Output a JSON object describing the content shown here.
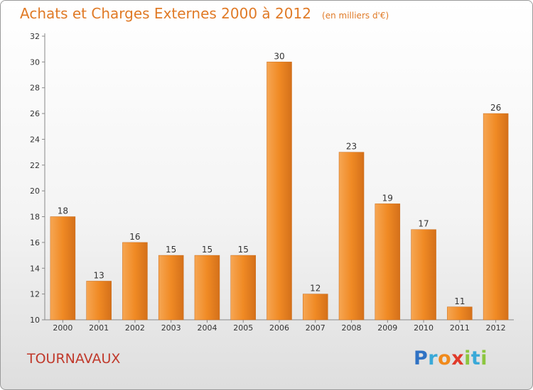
{
  "chart_data": {
    "type": "bar",
    "title": "Achats et Charges Externes 2000 à 2012",
    "subtitle": "(en milliers d'€)",
    "categories": [
      "2000",
      "2001",
      "2002",
      "2003",
      "2004",
      "2005",
      "2006",
      "2007",
      "2008",
      "2009",
      "2010",
      "2011",
      "2012"
    ],
    "values": [
      18,
      13,
      16,
      15,
      15,
      15,
      30,
      12,
      23,
      19,
      17,
      11,
      26
    ],
    "ylim": [
      10,
      32
    ],
    "yticks": [
      10,
      12,
      14,
      16,
      18,
      20,
      22,
      24,
      26,
      28,
      30,
      32
    ],
    "grid": false,
    "bar_color": "#f08a24",
    "bar_color_light": "#f6a653",
    "bar_color_dark": "#d4701a"
  },
  "location_label": "TOURNAVAUX",
  "logo": {
    "letters": [
      "P",
      "r",
      "o",
      "x",
      "i",
      "t",
      "i"
    ]
  }
}
